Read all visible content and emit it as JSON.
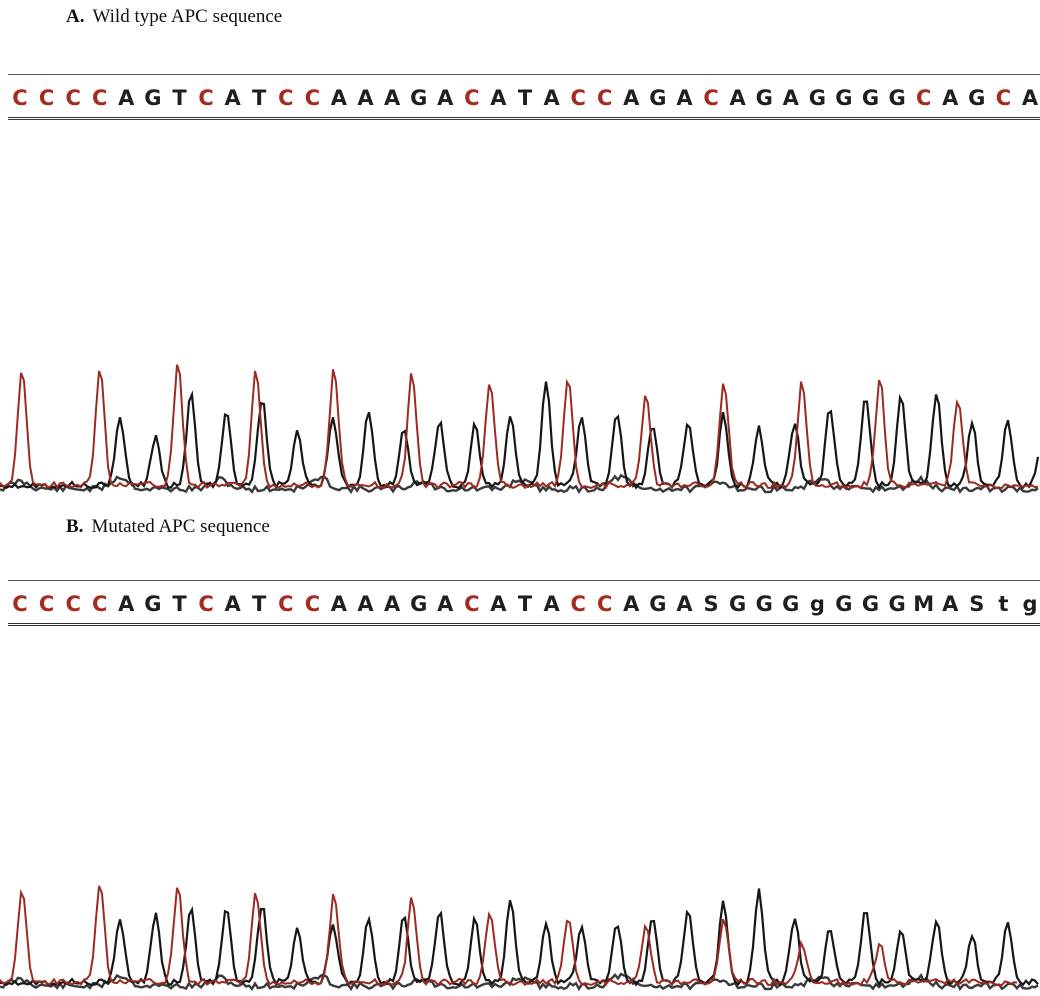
{
  "panels": [
    {
      "id": "A",
      "label": "A.",
      "title": "Wild type APC sequence",
      "sequence": "CCCCAGTCATCCAAAGACATACCAGACAGAGGGGCAGCA",
      "base_colors": {
        "C": "#a52a1f",
        "A": "#1f1f1f",
        "G": "#1f1f1f",
        "T": "#1f1f1f"
      },
      "letter_colors": [
        "#a52a1f",
        "#a52a1f",
        "#a52a1f",
        "#a52a1f",
        "#1f1f1f",
        "#1f1f1f",
        "#1f1f1f",
        "#a52a1f",
        "#1f1f1f",
        "#1f1f1f",
        "#a52a1f",
        "#a52a1f",
        "#1f1f1f",
        "#1f1f1f",
        "#1f1f1f",
        "#1f1f1f",
        "#1f1f1f",
        "#a52a1f",
        "#1f1f1f",
        "#1f1f1f",
        "#1f1f1f",
        "#a52a1f",
        "#a52a1f",
        "#1f1f1f",
        "#1f1f1f",
        "#1f1f1f",
        "#a52a1f",
        "#1f1f1f",
        "#1f1f1f",
        "#1f1f1f",
        "#1f1f1f",
        "#1f1f1f",
        "#1f1f1f",
        "#1f1f1f",
        "#a52a1f",
        "#1f1f1f",
        "#1f1f1f",
        "#a52a1f",
        "#1f1f1f"
      ]
    },
    {
      "id": "B",
      "label": "B.",
      "title": "Mutated APC sequence",
      "sequence": "CCCCAGTCATCCAAAGACATACCAGASGGGgGGGMAStg",
      "letter_colors": [
        "#a52a1f",
        "#a52a1f",
        "#a52a1f",
        "#a52a1f",
        "#1f1f1f",
        "#1f1f1f",
        "#1f1f1f",
        "#a52a1f",
        "#1f1f1f",
        "#1f1f1f",
        "#a52a1f",
        "#a52a1f",
        "#1f1f1f",
        "#1f1f1f",
        "#1f1f1f",
        "#1f1f1f",
        "#1f1f1f",
        "#a52a1f",
        "#1f1f1f",
        "#1f1f1f",
        "#1f1f1f",
        "#a52a1f",
        "#a52a1f",
        "#1f1f1f",
        "#1f1f1f",
        "#1f1f1f",
        "#1f1f1f",
        "#1f1f1f",
        "#1f1f1f",
        "#1f1f1f",
        "#1f1f1f",
        "#1f1f1f",
        "#1f1f1f",
        "#1f1f1f",
        "#1f1f1f",
        "#1f1f1f",
        "#1f1f1f",
        "#1f1f1f",
        "#1f1f1f"
      ]
    }
  ],
  "trace_colors": {
    "red": "#9c2a22",
    "black": "#161616",
    "gray": "#3a3a3a"
  },
  "trace_peaks": {
    "A": {
      "red": [
        0.78,
        0.8,
        0.82,
        0.78,
        0.78,
        0.75,
        0.7,
        0.72,
        0.62,
        0.68,
        0.7,
        0.72,
        0.58
      ],
      "black": [
        0.45,
        0.32,
        0.6,
        0.5,
        0.58,
        0.35,
        0.45,
        0.5,
        0.38,
        0.42,
        0.4,
        0.45,
        0.7,
        0.45,
        0.48,
        0.4,
        0.42,
        0.48,
        0.38,
        0.42,
        0.52,
        0.58,
        0.6,
        0.62,
        0.42,
        0.45,
        0.4
      ]
    },
    "B": {
      "red": [
        0.72,
        0.78,
        0.74,
        0.7,
        0.68,
        0.65,
        0.55,
        0.5,
        0.45,
        0.48,
        0.3,
        0.3
      ],
      "black": [
        0.48,
        0.52,
        0.55,
        0.58,
        0.6,
        0.4,
        0.44,
        0.5,
        0.52,
        0.54,
        0.48,
        0.62,
        0.46,
        0.42,
        0.45,
        0.5,
        0.56,
        0.62,
        0.7,
        0.5,
        0.42,
        0.55,
        0.4,
        0.48,
        0.36,
        0.48
      ]
    }
  }
}
